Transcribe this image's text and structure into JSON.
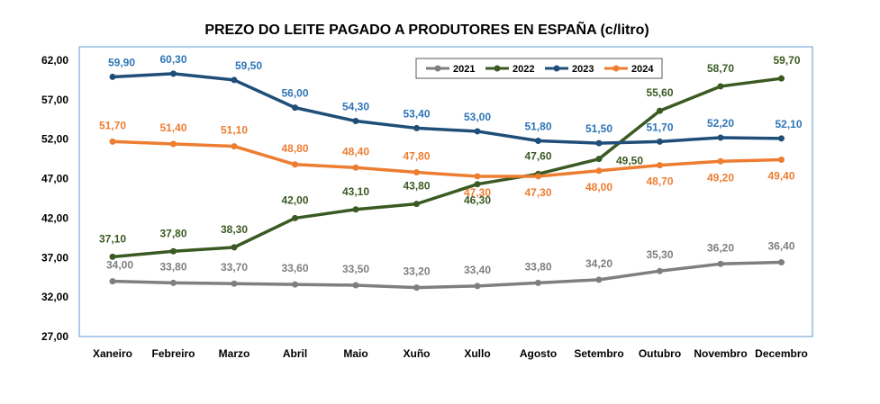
{
  "chart_data": {
    "type": "line",
    "title": "PREZO DO LEITE PAGADO A PRODUTORES EN ESPAÑA (c/litro)",
    "xlabel": "",
    "ylabel": "",
    "categories": [
      "Xaneiro",
      "Febreiro",
      "Marzo",
      "Abril",
      "Maio",
      "Xuño",
      "Xullo",
      "Agosto",
      "Setembro",
      "Outubro",
      "Novembro",
      "Decembro"
    ],
    "ylim": [
      27,
      62
    ],
    "yticks": [
      "27,00",
      "32,00",
      "37,00",
      "42,00",
      "47,00",
      "52,00",
      "57,00",
      "62,00"
    ],
    "legend_position": "top-right",
    "grid": false,
    "series": [
      {
        "name": "2021",
        "color": "#7f7f7f",
        "values": [
          34.0,
          33.8,
          33.7,
          33.6,
          33.5,
          33.2,
          33.4,
          33.8,
          34.2,
          35.3,
          36.2,
          36.4
        ],
        "labels": [
          "34,00",
          "33,80",
          "33,70",
          "33,60",
          "33,50",
          "33,20",
          "33,40",
          "33,80",
          "34,20",
          "35,30",
          "36,20",
          "36,40"
        ]
      },
      {
        "name": "2022",
        "color": "#3b5a23",
        "values": [
          37.1,
          37.8,
          38.3,
          42.0,
          43.1,
          43.8,
          46.3,
          47.6,
          49.5,
          55.6,
          58.7,
          59.7
        ],
        "labels": [
          "37,10",
          "37,80",
          "38,30",
          "42,00",
          "43,10",
          "43,80",
          "46,30",
          "47,60",
          "49,50",
          "55,60",
          "58,70",
          "59,70"
        ]
      },
      {
        "name": "2023",
        "color": "#1f4e79",
        "values": [
          59.9,
          60.3,
          59.5,
          56.0,
          54.3,
          53.4,
          53.0,
          51.8,
          51.5,
          51.7,
          52.2,
          52.1
        ],
        "labels": [
          "59,90",
          "60,30",
          "59,50",
          "56,00",
          "54,30",
          "53,40",
          "53,00",
          "51,80",
          "51,50",
          "51,70",
          "52,20",
          "52,10"
        ]
      },
      {
        "name": "2024",
        "color": "#ed7d31",
        "values": [
          51.7,
          51.4,
          51.1,
          48.8,
          48.4,
          47.8,
          47.3,
          47.3,
          48.0,
          48.7,
          49.2,
          49.4
        ],
        "labels": [
          "51,70",
          "51,40",
          "51,10",
          "48,80",
          "48,40",
          "47,80",
          "47,30",
          "47,30",
          "48,00",
          "48,70",
          "49,20",
          "49,40"
        ]
      }
    ]
  },
  "colors": {
    "plot_border": "#5b9bd5",
    "label_2023": "#2e75b6"
  }
}
